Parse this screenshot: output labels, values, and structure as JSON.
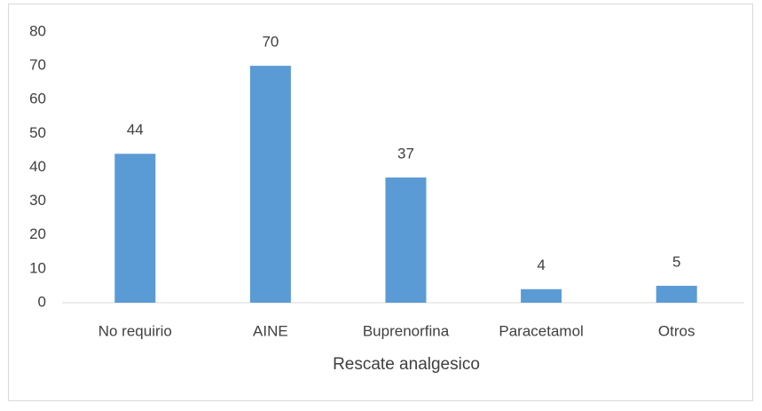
{
  "chart_data": {
    "type": "bar",
    "x_label": "Rescate analgesico",
    "categories": [
      "No requirio",
      "AINE",
      "Buprenorfina",
      "Paracetamol",
      "Otros"
    ],
    "values": [
      44,
      70,
      37,
      4,
      5
    ],
    "color": "#5b9bd5",
    "ylim": [
      0,
      80
    ],
    "yticks": [
      0,
      10,
      20,
      30,
      40,
      50,
      60,
      70,
      80
    ],
    "grid": false
  }
}
